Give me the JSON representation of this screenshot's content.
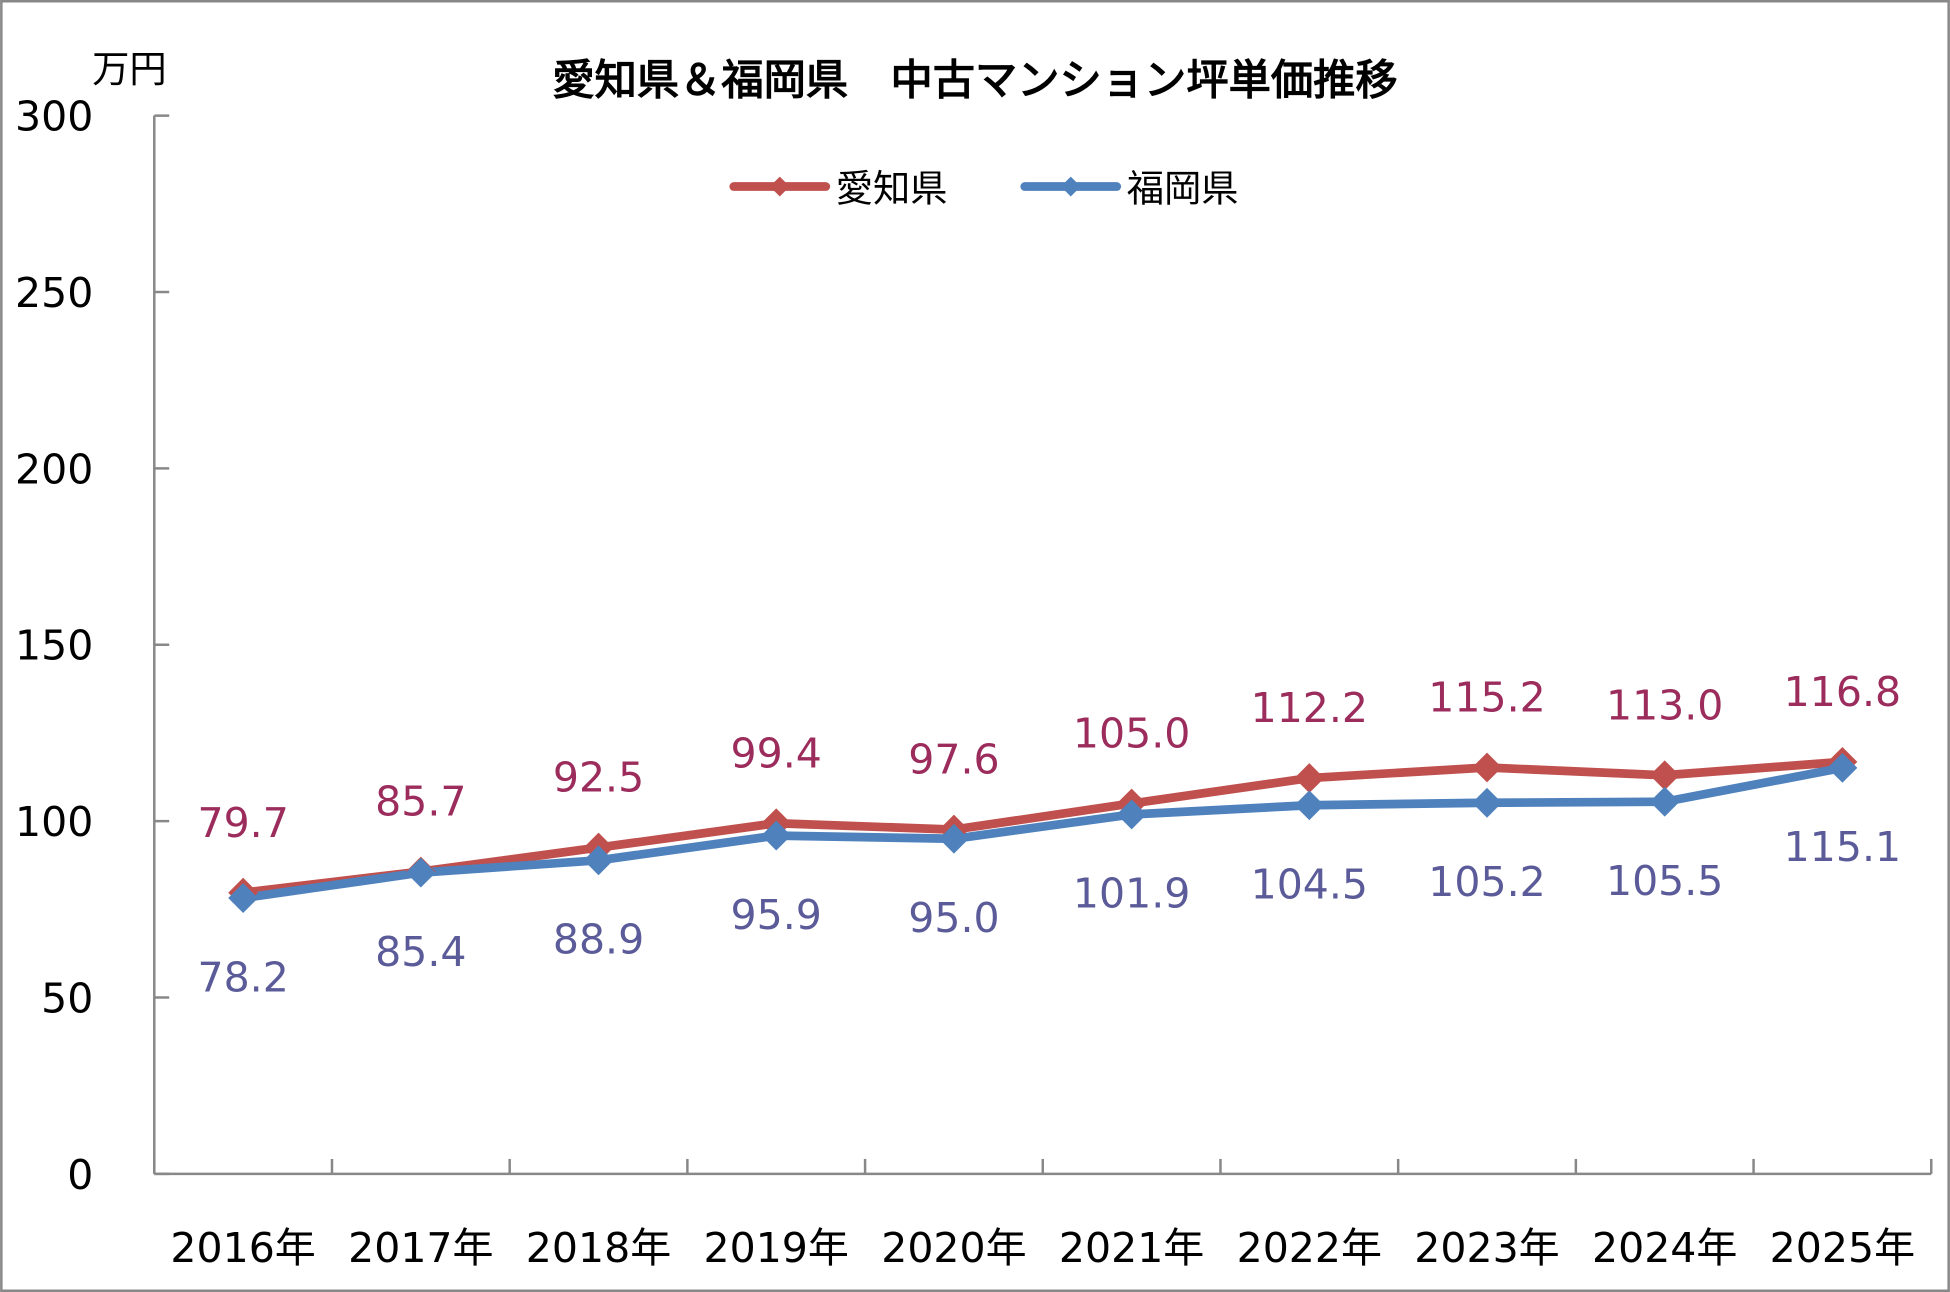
{
  "chart_data": {
    "type": "line",
    "title": "愛知県＆福岡県　中古マンション坪単価推移",
    "ylabel": "万円",
    "xlabel": "",
    "ylim": [
      0,
      300
    ],
    "yticks": [
      "0",
      "50",
      "100",
      "150",
      "200",
      "250",
      "300"
    ],
    "yticks_values": [
      0,
      50,
      100,
      150,
      200,
      250,
      300
    ],
    "categories": [
      "2016年",
      "2017年",
      "2018年",
      "2019年",
      "2020年",
      "2021年",
      "2022年",
      "2023年",
      "2024年",
      "2025年"
    ],
    "legend_position": "top-center",
    "grid": false,
    "series": [
      {
        "name": "愛知県",
        "color": "#c0504d",
        "label_color": "#9b2c5c",
        "values": [
          79.7,
          85.7,
          92.5,
          99.4,
          97.6,
          105.0,
          112.2,
          115.2,
          113.0,
          116.8
        ],
        "labels": [
          "79.7",
          "85.7",
          "92.5",
          "99.4",
          "97.6",
          "105.0",
          "112.2",
          "115.2",
          "113.0",
          "116.8"
        ]
      },
      {
        "name": "福岡県",
        "color": "#4f81bd",
        "label_color": "#5b5b99",
        "values": [
          78.2,
          85.4,
          88.9,
          95.9,
          95.0,
          101.9,
          104.5,
          105.2,
          105.5,
          115.1
        ],
        "labels": [
          "78.2",
          "85.4",
          "88.9",
          "95.9",
          "95.0",
          "101.9",
          "104.5",
          "105.2",
          "105.5",
          "115.1"
        ]
      }
    ]
  }
}
